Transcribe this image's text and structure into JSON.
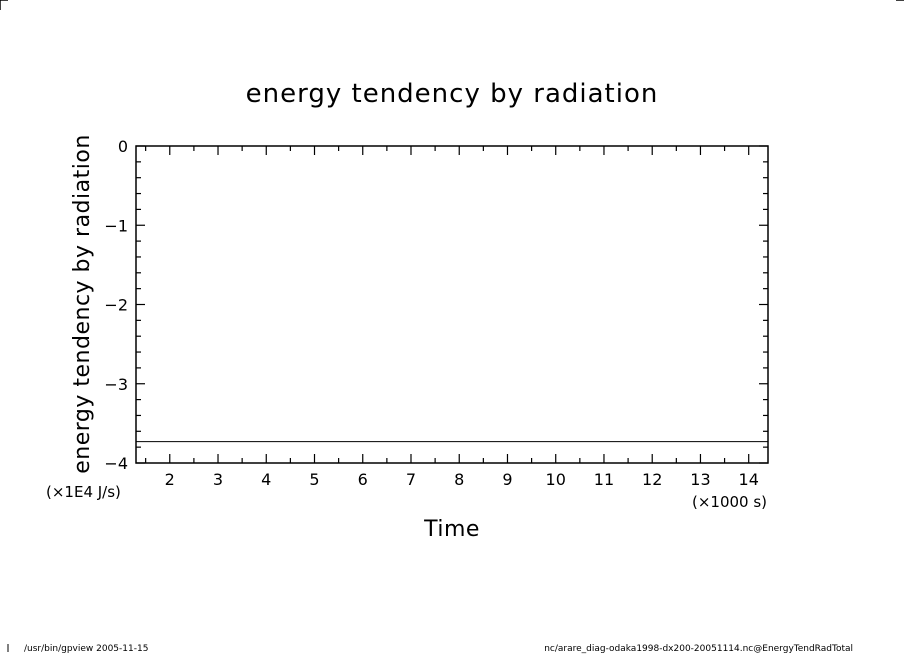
{
  "chart_data": {
    "type": "line",
    "title": "energy tendency by radiation",
    "xlabel": "Time",
    "ylabel": "energy tendency by radiation",
    "x_unit": "(×1000 s)",
    "y_unit": "(×1E4 J/s)",
    "xlim": [
      1.3,
      14.4
    ],
    "ylim": [
      -4,
      0
    ],
    "x_ticks": [
      2,
      3,
      4,
      5,
      6,
      7,
      8,
      9,
      10,
      11,
      12,
      13,
      14
    ],
    "y_ticks": [
      0,
      -1,
      -2,
      -3,
      -4
    ],
    "series": [
      {
        "x": [
          1.3,
          14.4
        ],
        "y": [
          -3.73,
          -3.73
        ]
      }
    ]
  },
  "footer": {
    "left": "/usr/bin/gpview  2005-11-15",
    "right": "nc/arare_diag-odaka1998-dx200-20051114.nc@EnergyTendRadTotal"
  },
  "colors": {
    "line": "#000000",
    "background": "#ffffff"
  }
}
